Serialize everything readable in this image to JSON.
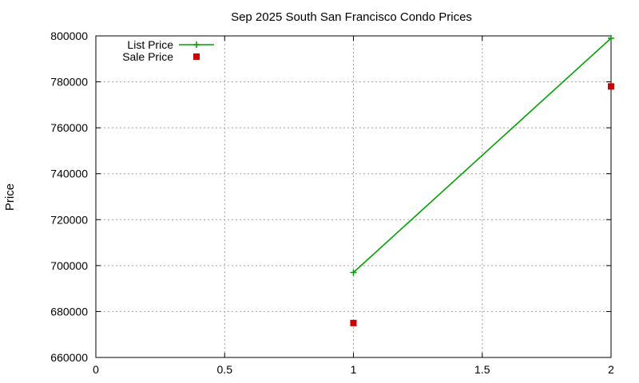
{
  "chart_data": {
    "type": "line",
    "title": "Sep 2025 South San Francisco Condo Prices",
    "xlabel": "",
    "ylabel": "Price",
    "xlim": [
      0,
      2
    ],
    "ylim": [
      660000,
      800000
    ],
    "xticks": [
      "0",
      "0.5",
      "1",
      "1.5",
      "2"
    ],
    "xtick_values": [
      0,
      0.5,
      1,
      1.5,
      2
    ],
    "yticks": [
      "660000",
      "680000",
      "700000",
      "720000",
      "740000",
      "760000",
      "780000",
      "800000"
    ],
    "ytick_values": [
      660000,
      680000,
      700000,
      720000,
      740000,
      760000,
      780000,
      800000
    ],
    "grid": true,
    "legend_position": "top-left",
    "series": [
      {
        "name": "List Price",
        "style": "linespoints",
        "marker": "plus",
        "color": "#00a000",
        "x": [
          1,
          2
        ],
        "y": [
          697000,
          799000
        ]
      },
      {
        "name": "Sale Price",
        "style": "points",
        "marker": "square",
        "color": "#cc0000",
        "x": [
          1,
          2
        ],
        "y": [
          675000,
          778000
        ]
      }
    ]
  }
}
